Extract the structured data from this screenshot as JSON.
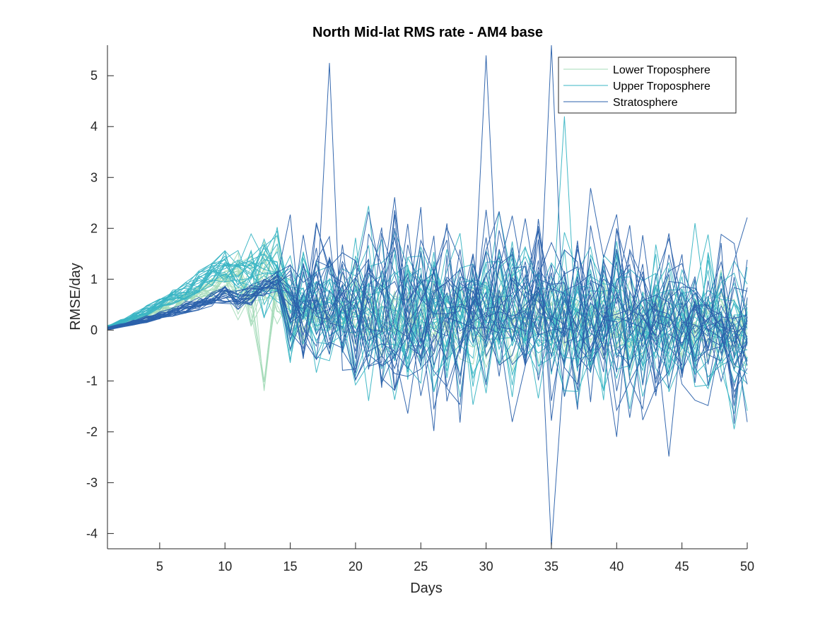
{
  "chart_data": {
    "type": "line",
    "title": "North Mid-lat RMS rate - AM4 base",
    "xlabel": "Days",
    "ylabel": "RMSE/day",
    "xlim": [
      1,
      50
    ],
    "ylim": [
      -4.3,
      5.6
    ],
    "xticks": [
      5,
      10,
      15,
      20,
      25,
      30,
      35,
      40,
      45,
      50
    ],
    "yticks": [
      -4,
      -3,
      -2,
      -1,
      0,
      1,
      2,
      3,
      4,
      5
    ],
    "grid": false,
    "legend_position": "top-right",
    "series_groups": [
      {
        "name": "Lower Troposphere",
        "color": "#a5dbb9",
        "count": 20,
        "amp_late": 0.55,
        "seed": 11
      },
      {
        "name": "Upper Troposphere",
        "color": "#3ab5c4",
        "count": 24,
        "amp_late": 1.05,
        "seed": 37
      },
      {
        "name": "Stratosphere",
        "color": "#2b61ab",
        "count": 22,
        "amp_late": 1.25,
        "seed": 73
      }
    ],
    "notable_peaks": [
      {
        "group": "Stratosphere",
        "x": 18,
        "y": 5.25
      },
      {
        "group": "Stratosphere",
        "x": 30,
        "y": 5.4
      },
      {
        "group": "Stratosphere",
        "x": 35,
        "y": 5.6
      },
      {
        "group": "Upper Troposphere",
        "x": 36,
        "y": 4.2
      },
      {
        "group": "Stratosphere",
        "x": 35,
        "y": -4.25
      }
    ]
  }
}
